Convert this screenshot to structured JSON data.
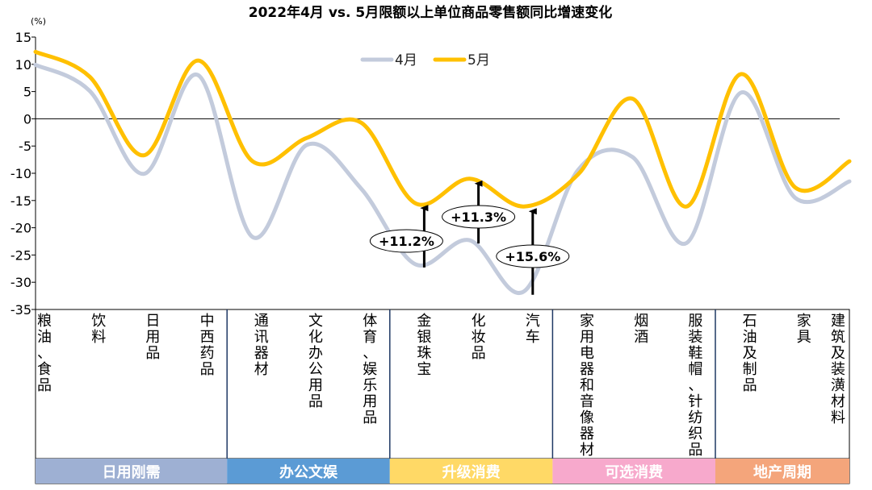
{
  "chart_data": {
    "type": "line",
    "title": "2022年4月 vs. 5月限额以上单位商品零售额同比增速变化",
    "unit_label": "(%)",
    "ylim": [
      -35,
      15
    ],
    "yticks": [
      15,
      10,
      5,
      0,
      -5,
      -10,
      -15,
      -20,
      -25,
      -30,
      -35
    ],
    "categories": [
      "粮油、食品",
      "饮料",
      "日用品",
      "中西药品",
      "通讯器材",
      "文化办公用品",
      "体育、娱乐用品",
      "金银珠宝",
      "化妆品",
      "汽车",
      "家用电器和音像器材",
      "烟酒",
      "服装鞋帽、针纺织品",
      "石油及制品",
      "家具",
      "建筑及装潢材料"
    ],
    "series": [
      {
        "name": "4月",
        "color": "#c3cbdc",
        "values": [
          9.9,
          5.1,
          -10.1,
          8.0,
          -21.7,
          -4.8,
          -12.8,
          -26.7,
          -22.3,
          -31.7,
          -9.4,
          -7.0,
          -22.8,
          4.8,
          -14.5,
          -11.5
        ]
      },
      {
        "name": "5月",
        "color": "#ffc000",
        "values": [
          12.3,
          7.7,
          -6.7,
          10.7,
          -7.8,
          -3.5,
          -0.7,
          -15.5,
          -11.0,
          -16.1,
          -10.2,
          3.7,
          -16.1,
          8.2,
          -12.6,
          -7.8
        ]
      }
    ],
    "groups": [
      {
        "label": "日用刚需",
        "count": 4,
        "color": "#9eb0d3"
      },
      {
        "label": "办公文娱",
        "count": 3,
        "color": "#5b9bd5"
      },
      {
        "label": "升级消费",
        "count": 3,
        "color": "#ffd966"
      },
      {
        "label": "可选消费",
        "count": 3,
        "color": "#f7a9cc"
      },
      {
        "label": "地产周期",
        "count": 3,
        "color": "#f4a57b"
      }
    ],
    "annotations": [
      {
        "text": "+11.2%",
        "category": "金银珠宝"
      },
      {
        "text": "+11.3%",
        "category": "化妆品"
      },
      {
        "text": "+15.6%",
        "category": "汽车"
      }
    ],
    "legend": "top-center",
    "grid": false
  }
}
